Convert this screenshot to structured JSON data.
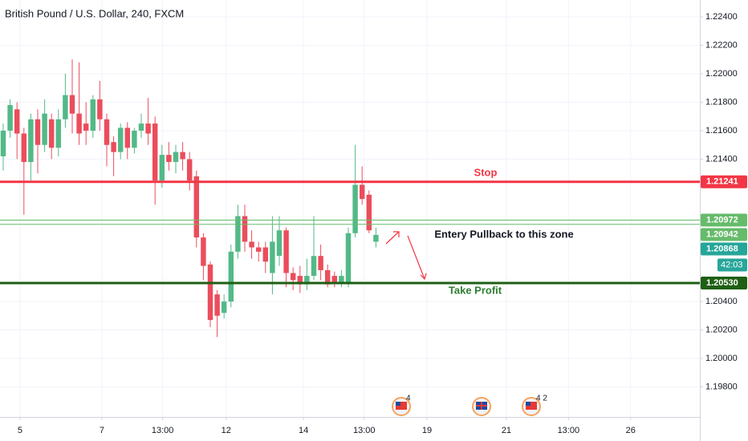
{
  "chart_data": {
    "type": "candlestick",
    "title": "British Pound / U.S. Dollar, 240, FXCM",
    "x": [
      0,
      1,
      2,
      3,
      4,
      5,
      6,
      7,
      8,
      9,
      10,
      11,
      12,
      13,
      14,
      15,
      16,
      17,
      18,
      19,
      20,
      21,
      22,
      23,
      24,
      25,
      26,
      27,
      28,
      29,
      30,
      31,
      32,
      33,
      34,
      35,
      36,
      37,
      38,
      39,
      40,
      41,
      42,
      43,
      44,
      45,
      46,
      47,
      48,
      49,
      50,
      51,
      52,
      53,
      54
    ],
    "open": [
      1.2142,
      1.216,
      1.2175,
      1.2158,
      1.2138,
      1.2168,
      1.215,
      1.2168,
      1.2148,
      1.2168,
      1.2185,
      1.2172,
      1.2165,
      1.216,
      1.2182,
      1.2168,
      1.2152,
      1.2145,
      1.2162,
      1.2148,
      1.216,
      1.2165,
      1.2165,
      1.2125,
      1.2143,
      1.2138,
      1.2145,
      1.214,
      1.2128,
      1.2085,
      1.2066,
      1.2045,
      1.2032,
      1.204,
      1.2075,
      1.21,
      1.2082,
      1.2078,
      1.2078,
      1.206,
      1.2072,
      1.209,
      1.206,
      1.2058,
      1.2052,
      1.2058,
      1.2072,
      1.2062,
      1.2058,
      1.2053,
      1.2053,
      1.2088,
      1.2122,
      1.2115,
      1.2082
    ],
    "high": [
      1.2165,
      1.2182,
      1.218,
      1.2162,
      1.2172,
      1.2175,
      1.2182,
      1.2172,
      1.2175,
      1.22,
      1.221,
      1.2208,
      1.218,
      1.2185,
      1.2195,
      1.2172,
      1.2156,
      1.2165,
      1.2166,
      1.2162,
      1.2172,
      1.2183,
      1.217,
      1.215,
      1.2152,
      1.215,
      1.2152,
      1.2145,
      1.2132,
      1.2088,
      1.2068,
      1.2048,
      1.2045,
      1.208,
      1.2108,
      1.2108,
      1.209,
      1.2082,
      1.2082,
      1.21,
      1.21,
      1.2092,
      1.2064,
      1.2065,
      1.207,
      1.21,
      1.208,
      1.2066,
      1.2061,
      1.2062,
      1.2092,
      1.215,
      1.2135,
      1.2118,
      1.2092
    ],
    "low": [
      1.2132,
      1.2155,
      1.214,
      1.2101,
      1.2125,
      1.213,
      1.2145,
      1.214,
      1.2142,
      1.2162,
      1.2158,
      1.215,
      1.215,
      1.2155,
      1.216,
      1.2135,
      1.2128,
      1.214,
      1.214,
      1.2144,
      1.2155,
      1.215,
      1.2108,
      1.212,
      1.2132,
      1.213,
      1.2132,
      1.2118,
      1.2078,
      1.2055,
      1.2022,
      1.2015,
      1.2028,
      1.2036,
      1.207,
      1.2075,
      1.207,
      1.2068,
      1.206,
      1.2045,
      1.2065,
      1.205,
      1.2048,
      1.2046,
      1.2048,
      1.2055,
      1.2055,
      1.205,
      1.205,
      1.205,
      1.205,
      1.2085,
      1.2108,
      1.2088,
      1.2078
    ],
    "close": [
      1.216,
      1.2178,
      1.2158,
      1.2138,
      1.2168,
      1.215,
      1.2172,
      1.2148,
      1.2168,
      1.2185,
      1.2172,
      1.2158,
      1.216,
      1.2182,
      1.2168,
      1.215,
      1.2145,
      1.2162,
      1.2148,
      1.216,
      1.2165,
      1.2158,
      1.2125,
      1.2143,
      1.2138,
      1.2145,
      1.214,
      1.2125,
      1.2085,
      1.2065,
      1.2027,
      1.203,
      1.204,
      1.2075,
      1.21,
      1.2082,
      1.2078,
      1.2075,
      1.2068,
      1.2082,
      1.209,
      1.206,
      1.2055,
      1.2052,
      1.2058,
      1.2072,
      1.2062,
      1.2052,
      1.2053,
      1.2058,
      1.2088,
      1.2122,
      1.2112,
      1.209,
      1.20868
    ],
    "up_color": "#53b987",
    "down_color": "#eb4d5c",
    "xlim": [
      -0.465,
      100.93
    ],
    "xticks": [
      {
        "value": 2.44,
        "label": "5"
      },
      {
        "value": 14.3,
        "label": "7"
      },
      {
        "value": 23.1,
        "label": "13:00"
      },
      {
        "value": 32.3,
        "label": "12"
      },
      {
        "value": 43.5,
        "label": "14"
      },
      {
        "value": 52.3,
        "label": "13:00"
      },
      {
        "value": 61.4,
        "label": "19"
      },
      {
        "value": 72.9,
        "label": "21"
      },
      {
        "value": 81.9,
        "label": "13:00"
      },
      {
        "value": 90.9,
        "label": "26"
      }
    ],
    "ylim": [
      1.19589,
      1.22518
    ],
    "yticks": [
      {
        "value": 1.224,
        "label": "1.22400"
      },
      {
        "value": 1.222,
        "label": "1.22200"
      },
      {
        "value": 1.22,
        "label": "1.22000"
      },
      {
        "value": 1.218,
        "label": "1.21800"
      },
      {
        "value": 1.216,
        "label": "1.21600"
      },
      {
        "value": 1.214,
        "label": "1.21400"
      },
      {
        "value": 1.204,
        "label": "1.20400"
      },
      {
        "value": 1.202,
        "label": "1.20200"
      },
      {
        "value": 1.2,
        "label": "1.20000"
      },
      {
        "value": 1.198,
        "label": "1.19800"
      }
    ],
    "grid": true,
    "levels": [
      {
        "price": 1.21241,
        "color": "#f23645",
        "width": 3,
        "text": "Stop"
      },
      {
        "price": 1.20972,
        "color": "#66bb6a",
        "width": 1
      },
      {
        "price": 1.20942,
        "color": "#66bb6a",
        "width": 1
      },
      {
        "price": {
          "value": 1.2053,
          "label": "1.20530"
        },
        "color": "#1e5f14",
        "width": 3,
        "text": "Take Profit"
      }
    ],
    "last_price": {
      "price": 1.20868,
      "color": "#26a69a",
      "countdown": "42:03"
    },
    "annotation": "Entery Pullback to this zone",
    "event_badges": [
      "4",
      "4 2"
    ]
  }
}
